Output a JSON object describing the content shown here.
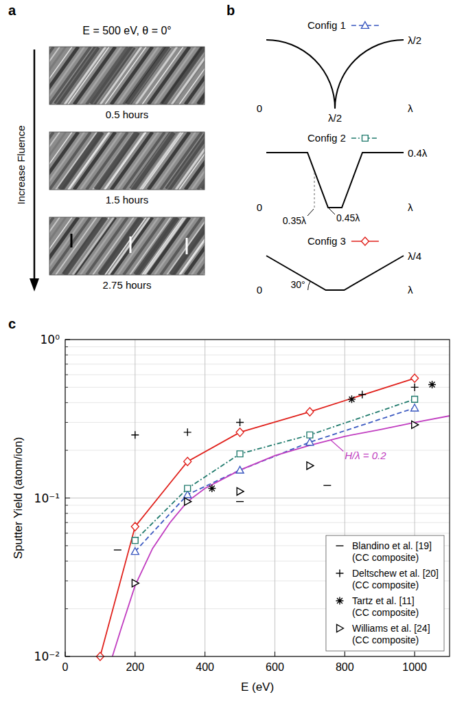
{
  "figure": {
    "panel_labels": [
      "a",
      "b",
      "c"
    ],
    "a": {
      "condition": "E = 500 eV,   θ = 0°",
      "arrow_label": "Increase Fluence",
      "captions": [
        "0.5 hours",
        "1.5 hours",
        "2.75 hours"
      ]
    },
    "b": {
      "configs": [
        {
          "left": "0",
          "right": "λ",
          "height": "λ/2",
          "marks": [
            "λ/2"
          ]
        },
        {
          "left": "0",
          "right": "λ",
          "height": "0.4λ",
          "marks": [
            "0.35λ",
            "0.45λ"
          ]
        },
        {
          "left": "0",
          "right": "λ",
          "height": "λ/4",
          "marks": [
            "30°"
          ]
        }
      ]
    }
  },
  "chart_data": {
    "type": "line",
    "xlabel": "E (eV)",
    "ylabel": "Sputter Yield (atom/ion)",
    "xlim": [
      0,
      1100
    ],
    "ylim": [
      0.01,
      1
    ],
    "xticks": [
      0,
      200,
      400,
      600,
      800,
      1000
    ],
    "yticks": [
      {
        "value": 0.01,
        "label": "10⁻²"
      },
      {
        "value": 0.1,
        "label": "10⁻¹"
      },
      {
        "value": 1,
        "label": "10⁰"
      }
    ],
    "log": "y",
    "grid": true,
    "legend": "lower right",
    "series": [
      {
        "name": "Config 1",
        "type": "line",
        "color": "#3a58c0",
        "marker": "triangle",
        "line_style": "dashed",
        "x": [
          200,
          350,
          500,
          700,
          1000
        ],
        "values": [
          0.046,
          0.105,
          0.15,
          0.225,
          0.37
        ]
      },
      {
        "name": "Config 2",
        "type": "line",
        "color": "#1f7a6c",
        "marker": "square",
        "line_style": "dashdot",
        "x": [
          200,
          350,
          500,
          700,
          1000
        ],
        "values": [
          0.054,
          0.115,
          0.19,
          0.25,
          0.42
        ]
      },
      {
        "name": "Config 3",
        "type": "line",
        "color": "#e0201b",
        "marker": "diamond",
        "line_style": "solid",
        "x": [
          100,
          200,
          350,
          500,
          700,
          1000
        ],
        "values": [
          0.01,
          0.066,
          0.17,
          0.26,
          0.35,
          0.57
        ]
      },
      {
        "name": "H/λ = 0.2",
        "type": "line",
        "color": "#c03cc0",
        "marker": "none",
        "line_style": "solid",
        "x": [
          135,
          160,
          200,
          250,
          300,
          350,
          400,
          500,
          600,
          700,
          800,
          900,
          1000,
          1100
        ],
        "values": [
          0.01,
          0.015,
          0.028,
          0.048,
          0.07,
          0.095,
          0.115,
          0.15,
          0.185,
          0.215,
          0.245,
          0.27,
          0.3,
          0.33
        ]
      },
      {
        "name": "Blandino et al. [19] (CC composite)",
        "type": "scatter",
        "color": "#000000",
        "marker": "dash",
        "x": [
          150,
          500,
          750
        ],
        "values": [
          0.047,
          0.095,
          0.12
        ]
      },
      {
        "name": "Deltschew et al. [20] (CC composite)",
        "type": "scatter",
        "color": "#000000",
        "marker": "plus",
        "x": [
          200,
          350,
          500,
          850,
          1000
        ],
        "values": [
          0.25,
          0.26,
          0.3,
          0.45,
          0.5
        ]
      },
      {
        "name": "Tartz et al. [11] (CC composite)",
        "type": "scatter",
        "color": "#000000",
        "marker": "asterisk",
        "x": [
          420,
          820,
          1050
        ],
        "values": [
          0.115,
          0.42,
          0.52
        ]
      },
      {
        "name": "Williams et al. [24] (CC composite)",
        "type": "scatter",
        "color": "#000000",
        "marker": "triangle-right",
        "x": [
          200,
          350,
          500,
          700,
          1000
        ],
        "values": [
          0.029,
          0.095,
          0.11,
          0.16,
          0.29
        ]
      }
    ]
  }
}
